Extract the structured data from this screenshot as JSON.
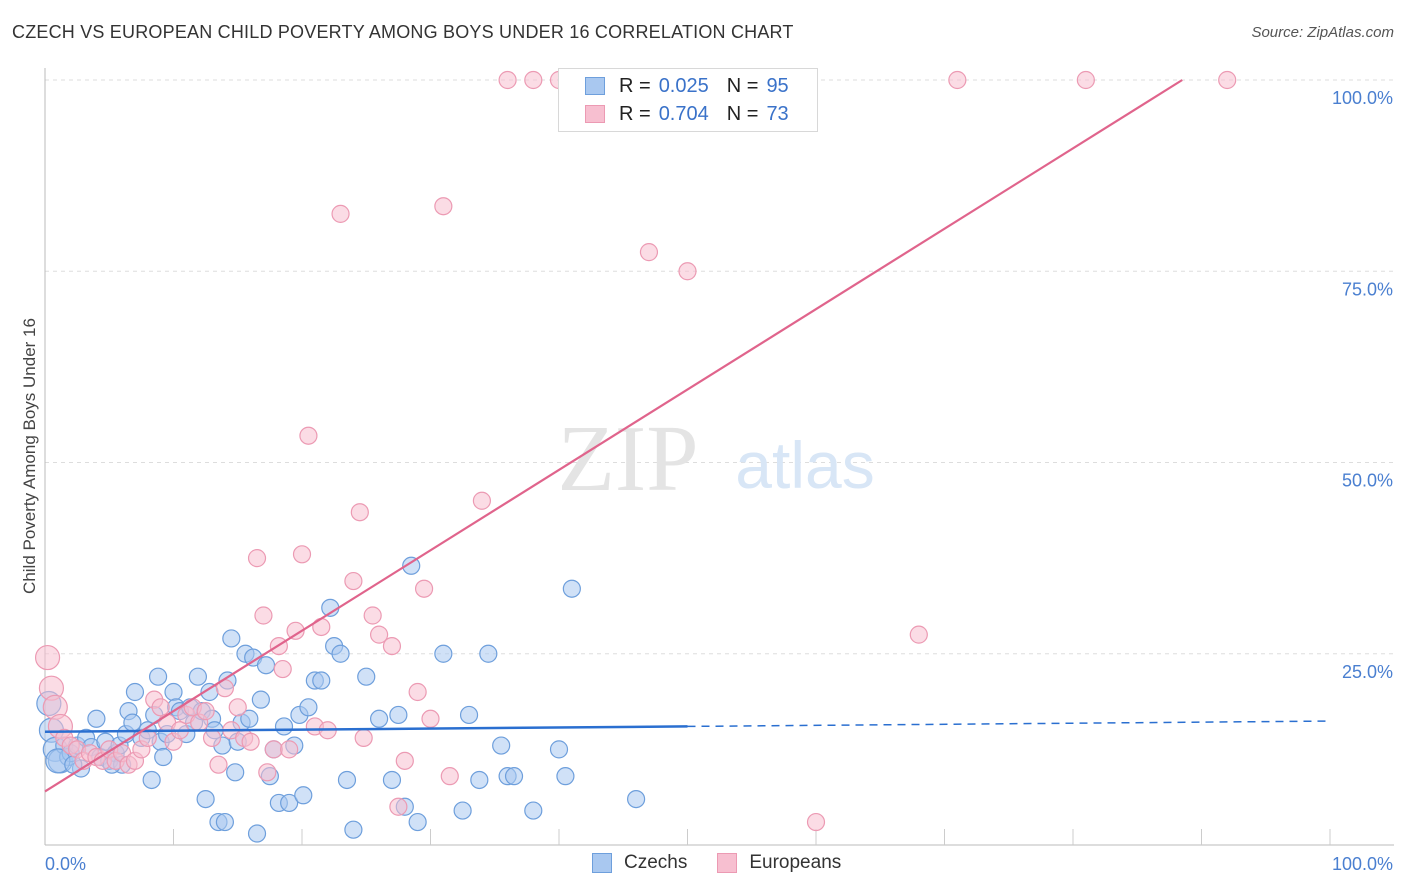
{
  "header": {
    "title": "CZECH VS EUROPEAN CHILD POVERTY AMONG BOYS UNDER 16 CORRELATION CHART",
    "source": "Source: ZipAtlas.com"
  },
  "watermark": {
    "zip": "ZIP",
    "atlas": "atlas"
  },
  "legend_top": {
    "czechs": {
      "r_label": "R =",
      "r_value": "0.025",
      "n_label": "N =",
      "n_value": "95"
    },
    "europeans": {
      "r_label": "R =",
      "r_value": "0.704",
      "n_label": "N =",
      "n_value": "73"
    }
  },
  "legend_bottom": {
    "czechs": "Czechs",
    "europeans": "Europeans"
  },
  "colors": {
    "czech_fill": "#a9c8f0",
    "czech_stroke": "#6e9fdc",
    "czech_line": "#2a6fd0",
    "euro_fill": "#f7bfd0",
    "euro_stroke": "#ec9ab3",
    "euro_line": "#e0648c",
    "tick_text": "#4a7fd0",
    "grid": "#dddddd"
  },
  "chart_data": {
    "type": "scatter",
    "title": "CZECH VS EUROPEAN CHILD POVERTY AMONG BOYS UNDER 16 CORRELATION CHART",
    "xlabel": "",
    "ylabel": "Child Poverty Among Boys Under 16",
    "xlim": [
      0,
      100
    ],
    "ylim": [
      0,
      100
    ],
    "x_tick_labels": [
      "0.0%",
      "100.0%"
    ],
    "y_ticks": [
      25,
      50,
      75,
      100
    ],
    "y_tick_labels": [
      "25.0%",
      "50.0%",
      "75.0%",
      "100.0%"
    ],
    "grid": "horizontal dashed",
    "legend_placement": "top-center",
    "series": [
      {
        "name": "Czechs",
        "r": 0.025,
        "n": 95,
        "trend": {
          "x0": 0,
          "y0": 14.8,
          "x1": 100,
          "y1": 16.2,
          "solid_until": 50
        },
        "points": [
          [
            0.3,
            18.5
          ],
          [
            0.5,
            15.0
          ],
          [
            0.8,
            12.5
          ],
          [
            1.2,
            11.0
          ],
          [
            1.5,
            13.0
          ],
          [
            1.8,
            11.5
          ],
          [
            2.0,
            12.0
          ],
          [
            2.5,
            13.0
          ],
          [
            2.8,
            10.0
          ],
          [
            3.2,
            14.0
          ],
          [
            3.6,
            12.8
          ],
          [
            4.0,
            16.5
          ],
          [
            4.3,
            11.5
          ],
          [
            4.7,
            13.5
          ],
          [
            5.0,
            11.0
          ],
          [
            5.5,
            12.0
          ],
          [
            5.8,
            13.0
          ],
          [
            6.0,
            10.5
          ],
          [
            6.3,
            14.5
          ],
          [
            6.5,
            17.5
          ],
          [
            6.8,
            16.0
          ],
          [
            7.0,
            20.0
          ],
          [
            7.5,
            14.0
          ],
          [
            8.0,
            15.0
          ],
          [
            8.3,
            8.5
          ],
          [
            8.5,
            17.0
          ],
          [
            8.8,
            22.0
          ],
          [
            9.0,
            13.5
          ],
          [
            9.5,
            14.5
          ],
          [
            10.0,
            20.0
          ],
          [
            10.2,
            18.0
          ],
          [
            10.5,
            17.5
          ],
          [
            11.0,
            14.5
          ],
          [
            11.3,
            18.0
          ],
          [
            11.6,
            16.0
          ],
          [
            11.9,
            22.0
          ],
          [
            12.2,
            17.5
          ],
          [
            12.5,
            6.0
          ],
          [
            12.8,
            20.0
          ],
          [
            13.0,
            16.5
          ],
          [
            13.2,
            15.0
          ],
          [
            13.5,
            3.0
          ],
          [
            13.8,
            13.0
          ],
          [
            14.0,
            3.0
          ],
          [
            14.2,
            21.5
          ],
          [
            14.5,
            27.0
          ],
          [
            14.8,
            9.5
          ],
          [
            15.0,
            13.5
          ],
          [
            15.3,
            16.0
          ],
          [
            15.6,
            25.0
          ],
          [
            15.9,
            16.5
          ],
          [
            16.2,
            24.5
          ],
          [
            16.5,
            1.5
          ],
          [
            16.8,
            19.0
          ],
          [
            17.2,
            23.5
          ],
          [
            17.5,
            9.0
          ],
          [
            17.8,
            12.5
          ],
          [
            18.2,
            5.5
          ],
          [
            18.6,
            15.5
          ],
          [
            19.0,
            5.5
          ],
          [
            19.4,
            13.0
          ],
          [
            19.8,
            17.0
          ],
          [
            20.1,
            6.5
          ],
          [
            20.5,
            18.0
          ],
          [
            21.0,
            21.5
          ],
          [
            21.5,
            21.5
          ],
          [
            22.2,
            31.0
          ],
          [
            22.5,
            26.0
          ],
          [
            23.0,
            25.0
          ],
          [
            23.5,
            8.5
          ],
          [
            24.0,
            2.0
          ],
          [
            25.0,
            22.0
          ],
          [
            26.0,
            16.5
          ],
          [
            27.0,
            8.5
          ],
          [
            27.5,
            17.0
          ],
          [
            28.0,
            5.0
          ],
          [
            28.5,
            36.5
          ],
          [
            29.0,
            3.0
          ],
          [
            31.0,
            25.0
          ],
          [
            32.5,
            4.5
          ],
          [
            33.0,
            17.0
          ],
          [
            33.8,
            8.5
          ],
          [
            34.5,
            25.0
          ],
          [
            35.5,
            13.0
          ],
          [
            36.0,
            9.0
          ],
          [
            36.5,
            9.0
          ],
          [
            38.0,
            4.5
          ],
          [
            40.0,
            12.5
          ],
          [
            40.5,
            9.0
          ],
          [
            41.0,
            33.5
          ],
          [
            46.0,
            6.0
          ],
          [
            1.0,
            11.0
          ],
          [
            2.2,
            10.5
          ],
          [
            5.2,
            10.5
          ],
          [
            9.2,
            11.5
          ]
        ]
      },
      {
        "name": "Europeans",
        "r": 0.704,
        "n": 73,
        "trend": {
          "x0": 0,
          "y0": 7.0,
          "x1": 88.5,
          "y1": 100
        },
        "points": [
          [
            0.2,
            24.5
          ],
          [
            0.5,
            20.5
          ],
          [
            0.8,
            18.0
          ],
          [
            1.2,
            15.5
          ],
          [
            1.5,
            14.0
          ],
          [
            2.0,
            13.0
          ],
          [
            2.5,
            12.5
          ],
          [
            3.0,
            11.0
          ],
          [
            3.5,
            12.0
          ],
          [
            4.0,
            11.5
          ],
          [
            4.5,
            11.0
          ],
          [
            5.0,
            12.5
          ],
          [
            5.5,
            11.0
          ],
          [
            6.0,
            12.0
          ],
          [
            6.5,
            10.5
          ],
          [
            7.0,
            11.0
          ],
          [
            7.5,
            12.5
          ],
          [
            8.0,
            14.0
          ],
          [
            8.5,
            19.0
          ],
          [
            9.0,
            18.0
          ],
          [
            9.5,
            16.0
          ],
          [
            10.0,
            13.5
          ],
          [
            10.5,
            15.0
          ],
          [
            11.0,
            17.0
          ],
          [
            11.5,
            18.0
          ],
          [
            12.0,
            16.0
          ],
          [
            12.5,
            17.5
          ],
          [
            13.0,
            14.0
          ],
          [
            13.5,
            10.5
          ],
          [
            14.0,
            20.5
          ],
          [
            14.5,
            15.0
          ],
          [
            15.0,
            18.0
          ],
          [
            15.5,
            14.0
          ],
          [
            16.0,
            13.5
          ],
          [
            16.5,
            37.5
          ],
          [
            17.0,
            30.0
          ],
          [
            17.3,
            9.5
          ],
          [
            17.8,
            12.5
          ],
          [
            18.2,
            26.0
          ],
          [
            18.5,
            23.0
          ],
          [
            19.0,
            12.5
          ],
          [
            19.5,
            28.0
          ],
          [
            20.0,
            38.0
          ],
          [
            20.5,
            53.5
          ],
          [
            21.0,
            15.5
          ],
          [
            21.5,
            28.5
          ],
          [
            22.0,
            15.0
          ],
          [
            23.0,
            82.5
          ],
          [
            24.0,
            34.5
          ],
          [
            24.5,
            43.5
          ],
          [
            24.8,
            14.0
          ],
          [
            25.5,
            30.0
          ],
          [
            26.0,
            27.5
          ],
          [
            27.0,
            26.0
          ],
          [
            27.5,
            5.0
          ],
          [
            28.0,
            11.0
          ],
          [
            29.0,
            20.0
          ],
          [
            29.5,
            33.5
          ],
          [
            30.0,
            16.5
          ],
          [
            31.0,
            83.5
          ],
          [
            31.5,
            9.0
          ],
          [
            34.0,
            45.0
          ],
          [
            36.0,
            100
          ],
          [
            38.0,
            100
          ],
          [
            40.0,
            100
          ],
          [
            47.0,
            77.5
          ],
          [
            50.0,
            75.0
          ],
          [
            54.0,
            100
          ],
          [
            60.0,
            3.0
          ],
          [
            68.0,
            27.5
          ],
          [
            71.0,
            100
          ],
          [
            81.0,
            100
          ],
          [
            92.0,
            100
          ]
        ]
      }
    ]
  }
}
